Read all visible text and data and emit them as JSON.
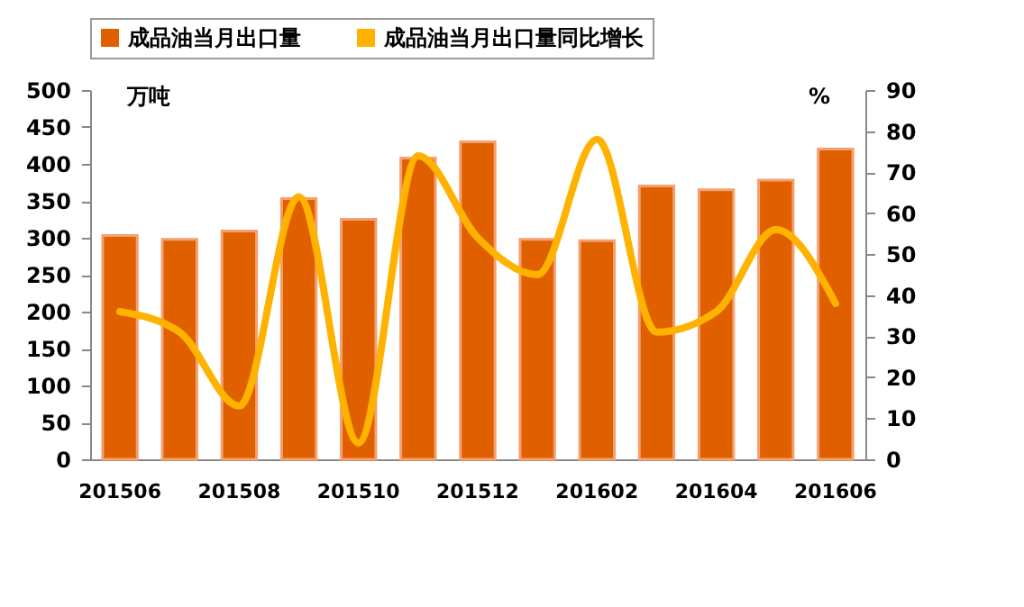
{
  "chart_data": {
    "type": "bar",
    "categories": [
      "201506",
      null,
      "201508",
      null,
      "201510",
      null,
      "201512",
      null,
      "201602",
      null,
      "201604",
      null,
      "201606"
    ],
    "ylabel": "万吨",
    "y2label": "%",
    "ylim": [
      0,
      500
    ],
    "yticks": [
      0,
      50,
      100,
      150,
      200,
      250,
      300,
      350,
      400,
      450,
      500
    ],
    "y2lim": [
      0,
      90
    ],
    "y2ticks": [
      0,
      10,
      20,
      30,
      40,
      50,
      60,
      70,
      80,
      90
    ],
    "legend": "top",
    "grid": false,
    "series": [
      {
        "name": "成品油当月出口量",
        "color": "#e06000",
        "values": [
          303,
          298,
          309,
          353,
          325,
          408,
          430,
          298,
          296,
          370,
          365,
          378,
          420
        ]
      },
      {
        "name": "成品油当月出口量同比增长",
        "type": "line",
        "axis": "y2",
        "color": "#ffb300",
        "values": [
          36,
          31,
          13,
          64,
          4,
          74,
          54,
          45,
          78,
          31,
          36,
          56,
          38
        ]
      }
    ]
  }
}
